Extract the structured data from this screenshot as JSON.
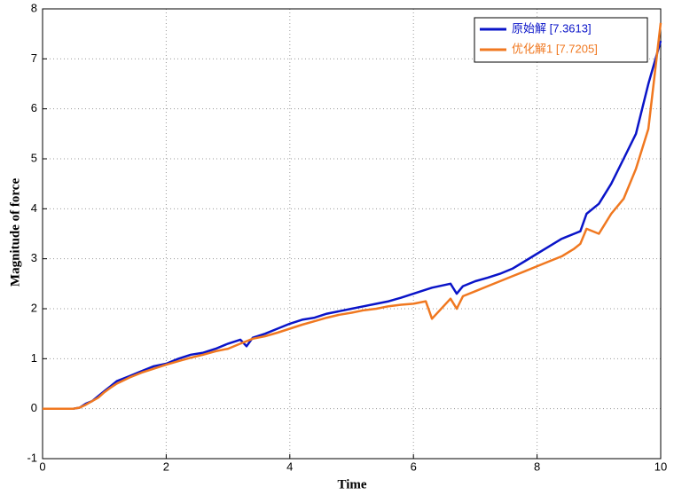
{
  "chart_data": {
    "type": "line",
    "xlabel": "Time",
    "ylabel": "Magnitude of force",
    "x": [
      0,
      0.5,
      0.6,
      0.7,
      0.8,
      0.9,
      1.0,
      1.1,
      1.2,
      1.4,
      1.6,
      1.8,
      2.0,
      2.2,
      2.4,
      2.6,
      2.8,
      3.0,
      3.2,
      3.3,
      3.4,
      3.6,
      3.8,
      4.0,
      4.2,
      4.4,
      4.6,
      4.8,
      5.0,
      5.2,
      5.4,
      5.6,
      5.8,
      6.0,
      6.2,
      6.3,
      6.6,
      6.7,
      6.8,
      7.0,
      7.2,
      7.4,
      7.6,
      7.8,
      8.0,
      8.2,
      8.4,
      8.6,
      8.7,
      8.8,
      9.0,
      9.2,
      9.4,
      9.6,
      9.8,
      10.0
    ],
    "series": [
      {
        "name": "原始解 [7.3613]",
        "color": "#0a14c8",
        "values": [
          0,
          0,
          0.02,
          0.1,
          0.15,
          0.25,
          0.35,
          0.45,
          0.55,
          0.65,
          0.75,
          0.85,
          0.9,
          1.0,
          1.08,
          1.12,
          1.2,
          1.3,
          1.38,
          1.25,
          1.42,
          1.5,
          1.6,
          1.7,
          1.78,
          1.82,
          1.9,
          1.95,
          2.0,
          2.05,
          2.1,
          2.15,
          2.22,
          2.3,
          2.38,
          2.42,
          2.5,
          2.3,
          2.45,
          2.55,
          2.62,
          2.7,
          2.8,
          2.95,
          3.1,
          3.25,
          3.4,
          3.5,
          3.55,
          3.9,
          4.1,
          4.5,
          5.0,
          5.5,
          6.5,
          7.36
        ]
      },
      {
        "name": "优化解1 [7.7205]",
        "color": "#f07820",
        "values": [
          0,
          0,
          0.02,
          0.08,
          0.15,
          0.22,
          0.33,
          0.42,
          0.5,
          0.62,
          0.72,
          0.8,
          0.88,
          0.95,
          1.02,
          1.08,
          1.15,
          1.2,
          1.3,
          1.35,
          1.4,
          1.45,
          1.52,
          1.6,
          1.68,
          1.75,
          1.82,
          1.88,
          1.92,
          1.97,
          2.0,
          2.05,
          2.08,
          2.1,
          2.15,
          1.8,
          2.2,
          2.0,
          2.25,
          2.35,
          2.45,
          2.55,
          2.65,
          2.75,
          2.85,
          2.95,
          3.05,
          3.2,
          3.3,
          3.6,
          3.5,
          3.9,
          4.2,
          4.8,
          5.6,
          7.72
        ]
      }
    ],
    "xlim": [
      0,
      10
    ],
    "xticks": [
      0,
      2,
      4,
      6,
      8,
      10
    ],
    "ylim": [
      -1,
      8
    ],
    "yticks": [
      -1,
      0,
      1,
      2,
      3,
      4,
      5,
      6,
      7,
      8
    ],
    "grid": true,
    "legend": "top-right"
  }
}
